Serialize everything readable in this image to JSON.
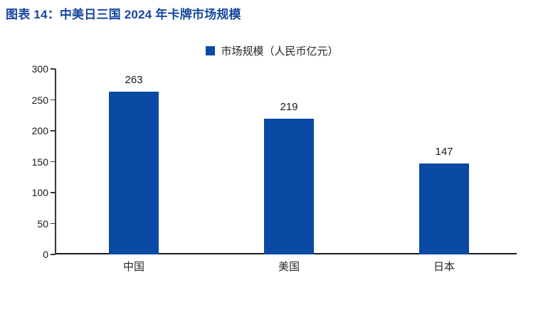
{
  "figure": {
    "title": "图表 14：中美日三国 2024 年卡牌市场规模"
  },
  "colors": {
    "accent": "#0B4AA4",
    "title": "#16479E",
    "axis": "#383838",
    "text": "#1A1A1A",
    "background": "#FFFFFF"
  },
  "chart_data": {
    "type": "bar",
    "title": "图表 14：中美日三国 2024 年卡牌市场规模",
    "legend": "市场规模（人民币亿元）",
    "legend_position": "top-center",
    "categories": [
      "中国",
      "美国",
      "日本"
    ],
    "values": [
      263,
      219,
      147
    ],
    "xlabel": "",
    "ylabel": "",
    "ylim": [
      0,
      300
    ],
    "yticks": [
      0,
      50,
      100,
      150,
      200,
      250,
      300
    ],
    "grid": false
  }
}
